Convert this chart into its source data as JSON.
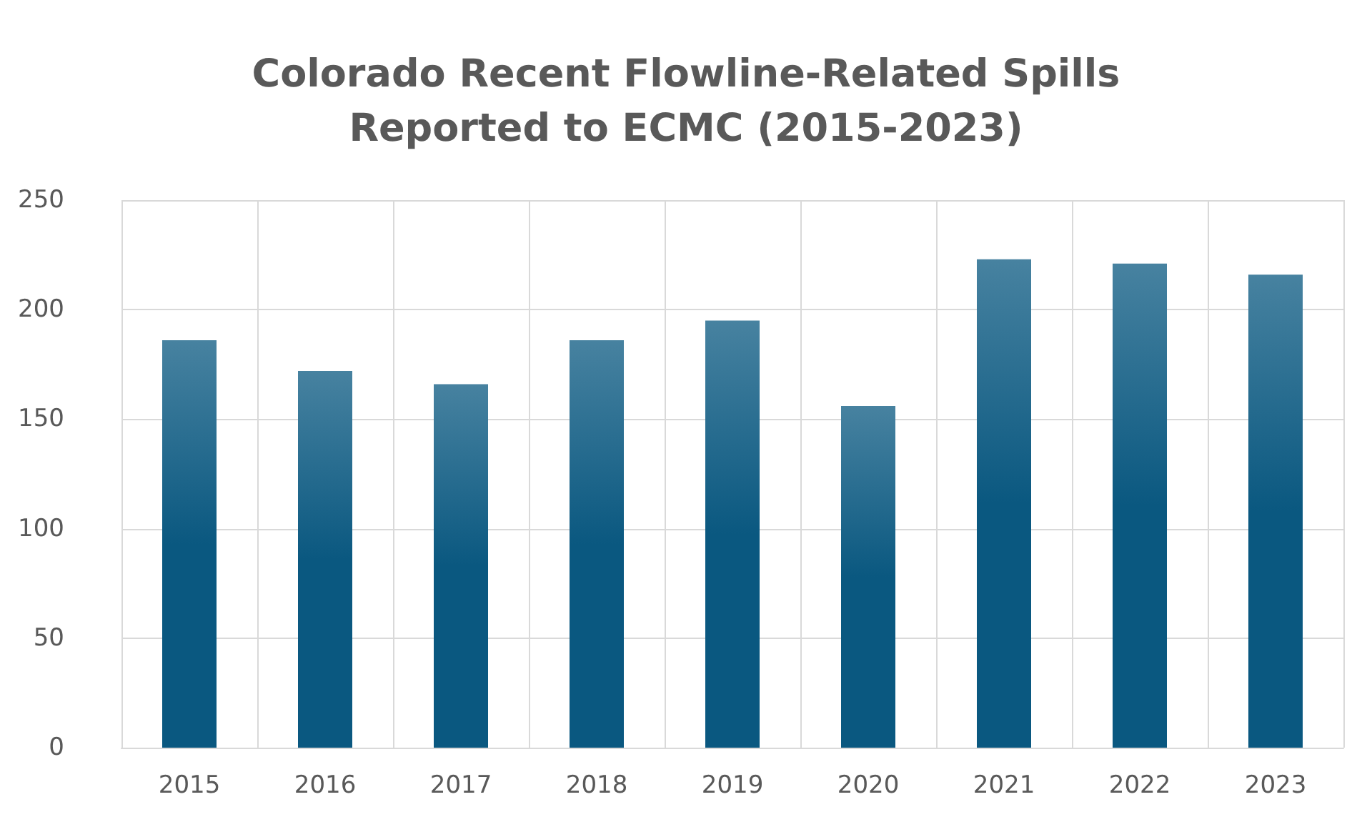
{
  "chart_data": {
    "type": "bar",
    "title": "Colorado Recent Flowline-Related Spills\nReported to ECMC (2015-2023)",
    "categories": [
      "2015",
      "2016",
      "2017",
      "2018",
      "2019",
      "2020",
      "2021",
      "2022",
      "2023"
    ],
    "values": [
      186,
      172,
      166,
      186,
      195,
      156,
      223,
      221,
      216
    ],
    "color": "#0a5880",
    "ylim": [
      0,
      250
    ],
    "yticks": [
      0,
      50,
      100,
      150,
      200,
      250
    ],
    "grid": true
  }
}
